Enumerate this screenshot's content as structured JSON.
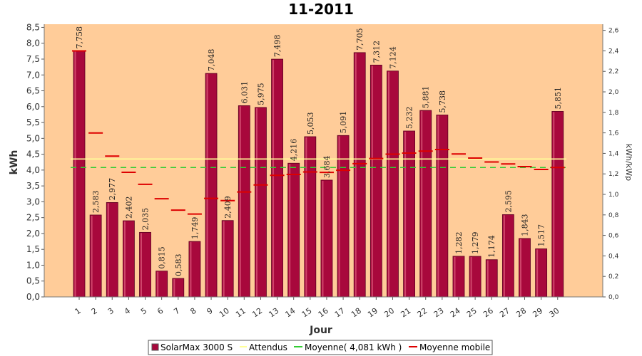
{
  "chart_data": {
    "type": "bar",
    "title": "11-2011",
    "xlabel": "Jour",
    "ylabel": "kWh",
    "y2label": "kWh/kWp",
    "ylim": [
      0,
      8.6
    ],
    "y2lim": [
      0,
      2.66
    ],
    "yticks": [
      "0,0",
      "0,5",
      "1,0",
      "1,5",
      "2,0",
      "2,5",
      "3,0",
      "3,5",
      "4,0",
      "4,5",
      "5,0",
      "5,5",
      "6,0",
      "6,5",
      "7,0",
      "7,5",
      "8,0",
      "8,5"
    ],
    "y2ticks": [
      "0,0",
      "0,2",
      "0,4",
      "0,6",
      "0,8",
      "1,0",
      "1,2",
      "1,4",
      "1,6",
      "1,8",
      "2,0",
      "2,2",
      "2,4",
      "2,6"
    ],
    "categories": [
      "1",
      "2",
      "3",
      "4",
      "5",
      "6",
      "7",
      "8",
      "9",
      "10",
      "11",
      "12",
      "13",
      "14",
      "15",
      "16",
      "17",
      "18",
      "19",
      "20",
      "21",
      "22",
      "23",
      "24",
      "25",
      "26",
      "27",
      "28",
      "29",
      "30"
    ],
    "series": [
      {
        "name": "SolarMax 3000 S",
        "color": "#a8083c",
        "values": [
          7.758,
          2.583,
          2.977,
          2.402,
          2.035,
          0.815,
          0.583,
          1.749,
          7.048,
          2.409,
          6.031,
          5.975,
          7.498,
          4.216,
          5.053,
          3.684,
          5.091,
          7.705,
          7.312,
          7.124,
          5.232,
          5.881,
          5.738,
          1.282,
          1.279,
          1.174,
          2.595,
          1.843,
          1.517,
          5.851
        ],
        "labels": [
          "7,758",
          "2,583",
          "2,977",
          "2,402",
          "2,035",
          "0,815",
          "0,583",
          "1,749",
          "7,048",
          "2,409",
          "6,031",
          "5,975",
          "7,498",
          "4,216",
          "5,053",
          "3,684",
          "5,091",
          "7,705",
          "7,312",
          "7,124",
          "5,232",
          "5,881",
          "5,738",
          "1,282",
          "1,279",
          "1,174",
          "2,595",
          "1,843",
          "1,517",
          "5,851"
        ]
      },
      {
        "name": "Attendus",
        "color": "#ffff99",
        "constant": 4.35
      },
      {
        "name": "Moyenne( 4,081 kWh )",
        "color": "#33cc33",
        "constant": 4.081
      },
      {
        "name": "Moyenne mobile",
        "color": "#dd0000",
        "values": [
          7.758,
          5.171,
          4.439,
          3.93,
          3.551,
          3.095,
          2.736,
          2.613,
          3.106,
          3.036,
          3.308,
          3.53,
          3.835,
          3.862,
          3.942,
          3.926,
          3.994,
          4.201,
          4.365,
          4.503,
          4.537,
          4.598,
          4.647,
          4.507,
          4.378,
          4.255,
          4.194,
          4.11,
          4.02,
          4.081
        ]
      }
    ],
    "legend": {
      "position": "bottom",
      "items": [
        "SolarMax 3000 S",
        "Attendus",
        "Moyenne( 4,081 kWh )",
        "Moyenne mobile"
      ]
    },
    "background": "#ffcc99",
    "grid": true
  }
}
